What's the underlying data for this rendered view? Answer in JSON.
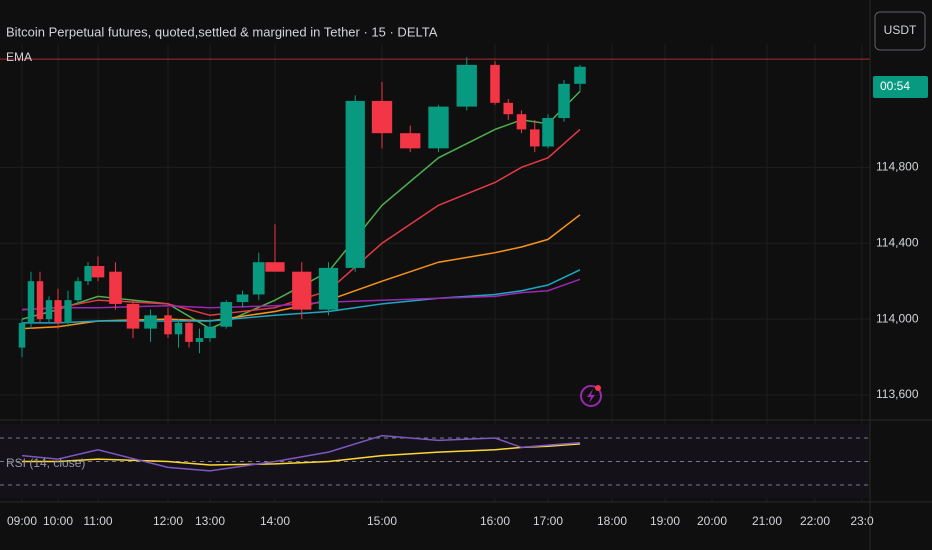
{
  "chart_data": {
    "type": "candlestick",
    "title": "Bitcoin Perpetual futures, quoted,settled & margined in Tether · 15 · DELTA",
    "indicator_label": "EMA",
    "currency_button": "USDT",
    "countdown": "00:54",
    "up_color": "#089981",
    "down_color": "#f23645",
    "grid": true,
    "price_line": 115370,
    "x": [
      9,
      9.25,
      9.5,
      9.75,
      10,
      10.25,
      10.5,
      10.75,
      11,
      11.25,
      11.5,
      11.75,
      12,
      12.25,
      12.5,
      12.75,
      13,
      13.25,
      13.5,
      13.75,
      14,
      14.25,
      14.5,
      14.75,
      15,
      15.25,
      15.5,
      15.75,
      16,
      16.25,
      16.5,
      16.75,
      17,
      17.25,
      17.5
    ],
    "open": [
      113850,
      113980,
      114200,
      114000,
      114100,
      113980,
      114100,
      114200,
      114280,
      114250,
      114080,
      113950,
      114020,
      113920,
      113980,
      113880,
      113900,
      113960,
      114090,
      114130,
      114300,
      114250,
      114050,
      114270,
      115150,
      114980,
      114900,
      115120,
      115340,
      115140,
      115080,
      115000,
      114910,
      115060,
      115240
    ],
    "high": [
      114000,
      114250,
      114250,
      114120,
      114160,
      114150,
      114220,
      114300,
      114330,
      114300,
      114100,
      114050,
      114060,
      114000,
      114000,
      113950,
      114000,
      114100,
      114150,
      114350,
      114500,
      114300,
      114300,
      115180,
      115250,
      115020,
      115130,
      115380,
      115360,
      115160,
      115100,
      115050,
      115080,
      115260,
      115340
    ],
    "low": [
      113800,
      113950,
      113980,
      113980,
      113950,
      113960,
      114080,
      114180,
      114200,
      114050,
      113900,
      113880,
      113900,
      113850,
      113850,
      113820,
      113880,
      113950,
      114060,
      114100,
      114250,
      114000,
      114020,
      114250,
      114900,
      114880,
      114880,
      115100,
      115130,
      115050,
      114980,
      114880,
      114900,
      115040,
      115200
    ],
    "close": [
      113980,
      114200,
      114000,
      114100,
      113980,
      114100,
      114200,
      114280,
      114220,
      114080,
      113950,
      114020,
      113920,
      113980,
      113880,
      113900,
      113960,
      114090,
      114130,
      114300,
      114250,
      114050,
      114270,
      115150,
      114980,
      114900,
      115120,
      115340,
      115140,
      115080,
      115000,
      114910,
      115060,
      115240,
      115330
    ],
    "lines": {
      "x": [
        9,
        10,
        11,
        12,
        13,
        14,
        14.5,
        15,
        15.5,
        16,
        16.5,
        17,
        17.5
      ],
      "series": [
        {
          "color": "#4caf50",
          "values": [
            114000,
            114050,
            114120,
            114080,
            113950,
            114100,
            114250,
            114600,
            114850,
            115000,
            115050,
            115030,
            115200
          ]
        },
        {
          "color": "#e53945",
          "values": [
            114050,
            114060,
            114100,
            114080,
            114020,
            114060,
            114150,
            114400,
            114600,
            114720,
            114800,
            114850,
            115000
          ]
        },
        {
          "color": "#f7931a",
          "values": [
            113950,
            113960,
            113990,
            114000,
            113990,
            114040,
            114100,
            114200,
            114300,
            114350,
            114380,
            114420,
            114550
          ]
        },
        {
          "color": "#1ea7c4",
          "values": [
            113980,
            113980,
            113990,
            113990,
            113990,
            114020,
            114040,
            114080,
            114110,
            114130,
            114150,
            114180,
            114260
          ]
        },
        {
          "color": "#9c27b0",
          "values": [
            114050,
            114060,
            114060,
            114070,
            114060,
            114070,
            114090,
            114100,
            114110,
            114120,
            114140,
            114150,
            114210
          ]
        }
      ]
    },
    "xlim": [
      8.4,
      23.2
    ],
    "ylim": [
      113500,
      115450
    ],
    "xticks": [
      {
        "value": 9,
        "label": "09:00"
      },
      {
        "value": 10,
        "label": "10:00"
      },
      {
        "value": 11,
        "label": "11:00"
      },
      {
        "value": 12,
        "label": "12:00"
      },
      {
        "value": 13,
        "label": "13:00"
      },
      {
        "value": 14,
        "label": "14:00"
      },
      {
        "value": 15,
        "label": "15:00"
      },
      {
        "value": 16,
        "label": "16:00"
      },
      {
        "value": 17,
        "label": "17:00"
      },
      {
        "value": 18,
        "label": "18:00"
      },
      {
        "value": 19,
        "label": "19:00"
      },
      {
        "value": 20,
        "label": "20:00"
      },
      {
        "value": 21,
        "label": "21:00"
      },
      {
        "value": 22,
        "label": "22:00"
      },
      {
        "value": 23,
        "label": "23:0"
      }
    ],
    "yticks": [
      {
        "value": 113600,
        "label": "113,600"
      },
      {
        "value": 114000,
        "label": "114,000"
      },
      {
        "value": 114400,
        "label": "114,400"
      },
      {
        "value": 114800,
        "label": "114,800"
      }
    ],
    "rsi": {
      "label": "RSI (14, close)",
      "ylim": [
        0,
        100
      ],
      "levels": [
        70,
        50,
        30
      ],
      "x": [
        9,
        10,
        11,
        12,
        13,
        14,
        14.5,
        15,
        15.5,
        16,
        16.5,
        17,
        17.5
      ],
      "values": [
        55,
        52,
        60,
        45,
        42,
        50,
        58,
        72,
        68,
        70,
        62,
        64,
        66
      ],
      "color": "#7e57c2",
      "ma_values": [
        50,
        50,
        52,
        50,
        47,
        48,
        50,
        55,
        58,
        60,
        62,
        63,
        65
      ],
      "ma_color": "#fdd835"
    }
  }
}
